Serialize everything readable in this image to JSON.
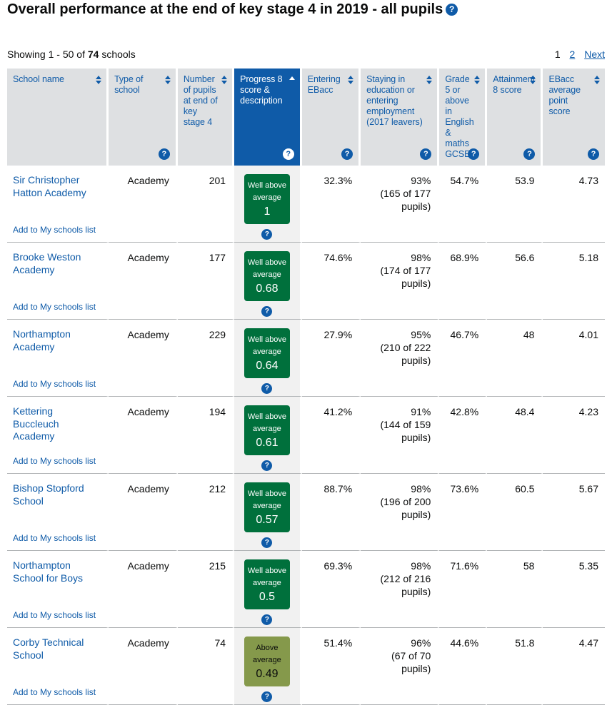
{
  "page": {
    "title": "Overall performance at the end of key stage 4 in 2019 - all pupils",
    "showing_prefix": "Showing 1 - 50 of",
    "showing_count": "74",
    "showing_suffix": "schools",
    "pagination": {
      "current": "1",
      "page2": "2",
      "next_label": "Next"
    }
  },
  "icons": {
    "help_glyph": "?"
  },
  "colors": {
    "accent_blue": "#0f5ba8",
    "header_grey": "#dee0e2",
    "highlight_column_grey": "#f1f1f1",
    "badge_well_above_average": "#00703c",
    "badge_above_average": "#85994b",
    "row_border": "#b1b4b6"
  },
  "table": {
    "columns": [
      {
        "label": "School name",
        "sortable": true,
        "help": false,
        "sorted": false
      },
      {
        "label": "Type of school",
        "sortable": true,
        "help": true,
        "sorted": false
      },
      {
        "label": "Number of pupils at end of key stage 4",
        "sortable": true,
        "help": false,
        "sorted": false
      },
      {
        "label": "Progress 8 score & description",
        "sortable": true,
        "help": true,
        "sorted": true,
        "sort_direction": "ascending"
      },
      {
        "label": "Entering EBacc",
        "sortable": true,
        "help": true,
        "sorted": false
      },
      {
        "label": "Staying in education or entering employment (2017 leavers)",
        "sortable": true,
        "help": true,
        "sorted": false
      },
      {
        "label": "Grade 5 or above in English & maths GCSEs",
        "sortable": true,
        "help": true,
        "sorted": false
      },
      {
        "label": "Attainment 8 score",
        "sortable": true,
        "help": true,
        "sorted": false
      },
      {
        "label": "EBacc average point score",
        "sortable": true,
        "help": true,
        "sorted": false
      }
    ],
    "rows": [
      {
        "school": "Sir Christopher Hatton Academy",
        "add_link": "Add to My schools list",
        "type": "Academy",
        "pupils": "201",
        "p8_desc": "Well above average",
        "p8_score": "1",
        "p8_band": "well-above",
        "entering_ebacc": "32.3%",
        "staying_pct": "93%",
        "staying_detail": "(165 of 177 pupils)",
        "grade5": "54.7%",
        "attainment8": "53.9",
        "ebacc_aps": "4.73"
      },
      {
        "school": "Brooke Weston Academy",
        "add_link": "Add to My schools list",
        "type": "Academy",
        "pupils": "177",
        "p8_desc": "Well above average",
        "p8_score": "0.68",
        "p8_band": "well-above",
        "entering_ebacc": "74.6%",
        "staying_pct": "98%",
        "staying_detail": "(174 of 177 pupils)",
        "grade5": "68.9%",
        "attainment8": "56.6",
        "ebacc_aps": "5.18"
      },
      {
        "school": "Northampton Academy",
        "add_link": "Add to My schools list",
        "type": "Academy",
        "pupils": "229",
        "p8_desc": "Well above average",
        "p8_score": "0.64",
        "p8_band": "well-above",
        "entering_ebacc": "27.9%",
        "staying_pct": "95%",
        "staying_detail": "(210 of 222 pupils)",
        "grade5": "46.7%",
        "attainment8": "48",
        "ebacc_aps": "4.01"
      },
      {
        "school": "Kettering Buccleuch Academy",
        "add_link": "Add to My schools list",
        "type": "Academy",
        "pupils": "194",
        "p8_desc": "Well above average",
        "p8_score": "0.61",
        "p8_band": "well-above",
        "entering_ebacc": "41.2%",
        "staying_pct": "91%",
        "staying_detail": "(144 of 159 pupils)",
        "grade5": "42.8%",
        "attainment8": "48.4",
        "ebacc_aps": "4.23"
      },
      {
        "school": "Bishop Stopford School",
        "add_link": "Add to My schools list",
        "type": "Academy",
        "pupils": "212",
        "p8_desc": "Well above average",
        "p8_score": "0.57",
        "p8_band": "well-above",
        "entering_ebacc": "88.7%",
        "staying_pct": "98%",
        "staying_detail": "(196 of 200 pupils)",
        "grade5": "73.6%",
        "attainment8": "60.5",
        "ebacc_aps": "5.67"
      },
      {
        "school": "Northampton School for Boys",
        "add_link": "Add to My schools list",
        "type": "Academy",
        "pupils": "215",
        "p8_desc": "Well above average",
        "p8_score": "0.5",
        "p8_band": "well-above",
        "entering_ebacc": "69.3%",
        "staying_pct": "98%",
        "staying_detail": "(212 of 216 pupils)",
        "grade5": "71.6%",
        "attainment8": "58",
        "ebacc_aps": "5.35"
      },
      {
        "school": "Corby Technical School",
        "add_link": "Add to My schools list",
        "type": "Academy",
        "pupils": "74",
        "p8_desc": "Above average",
        "p8_score": "0.49",
        "p8_band": "above",
        "entering_ebacc": "51.4%",
        "staying_pct": "96%",
        "staying_detail": "(67 of 70 pupils)",
        "grade5": "44.6%",
        "attainment8": "51.8",
        "ebacc_aps": "4.47"
      }
    ]
  }
}
